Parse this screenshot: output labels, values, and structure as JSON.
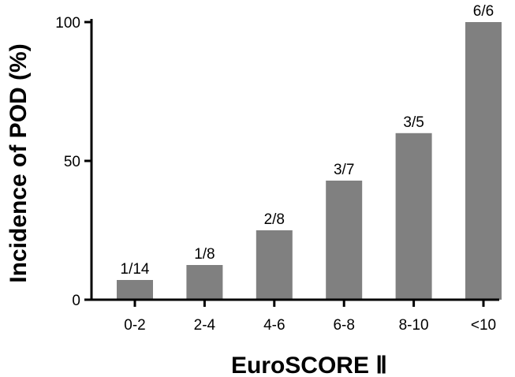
{
  "chart_data": {
    "type": "bar",
    "title": "",
    "xlabel": "EuroSCORE Ⅱ",
    "ylabel": "Incidence of POD (%)",
    "categories": [
      "0-2",
      "2-4",
      "4-6",
      "6-8",
      "8-10",
      "<10"
    ],
    "values": [
      7.1,
      12.5,
      25.0,
      42.9,
      60.0,
      100.0
    ],
    "data_labels": [
      "1/14",
      "1/8",
      "2/8",
      "3/7",
      "3/5",
      "6/6"
    ],
    "ylim": [
      0,
      100
    ],
    "yticks": [
      "0",
      "50",
      "100"
    ],
    "grid": false,
    "legend": "none",
    "bar_color": "#808080",
    "axis_color": "#000000"
  }
}
